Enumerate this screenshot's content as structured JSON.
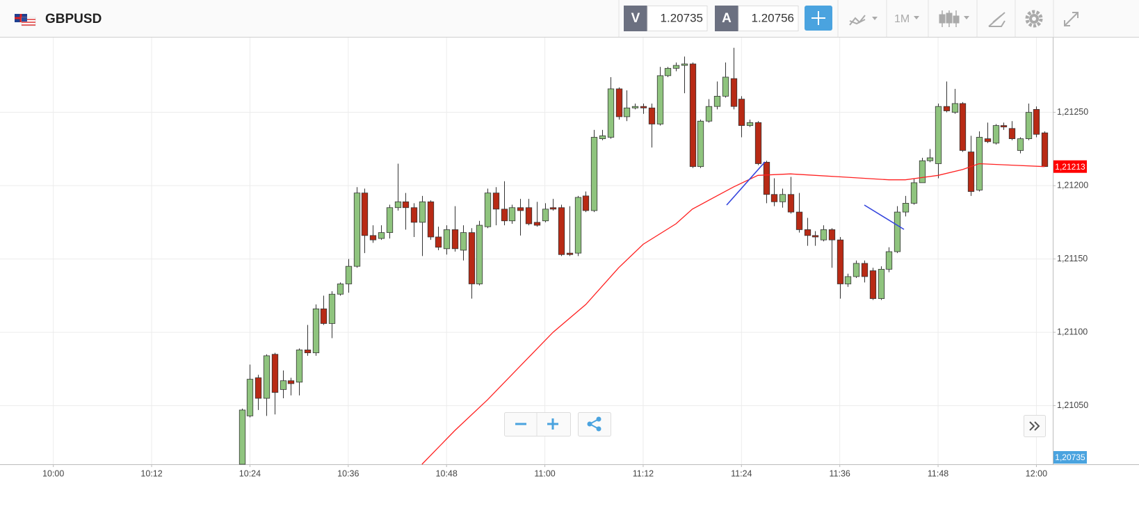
{
  "header": {
    "symbol": "GBPUSD",
    "sell_label": "V",
    "sell_price": 1.20735,
    "buy_label": "A",
    "buy_price": 1.20756,
    "timeframe": "1M"
  },
  "chart_data": {
    "type": "candlestick",
    "x": [
      "10:23",
      "10:24",
      "10:25",
      "10:26",
      "10:27",
      "10:28",
      "10:29",
      "10:30",
      "10:31",
      "10:32",
      "10:33",
      "10:34",
      "10:35",
      "10:36",
      "10:37",
      "10:38",
      "10:39",
      "10:40",
      "10:41",
      "10:42",
      "10:43",
      "10:44",
      "10:45",
      "10:46",
      "10:47",
      "10:48",
      "10:49",
      "10:50",
      "10:51",
      "10:52",
      "10:53",
      "10:54",
      "10:55",
      "10:56",
      "10:57",
      "10:58",
      "10:59",
      "11:00",
      "11:01",
      "11:02",
      "11:03",
      "11:04",
      "11:05",
      "11:06",
      "11:07",
      "11:08",
      "11:09",
      "11:10",
      "11:11",
      "11:12",
      "11:13",
      "11:14",
      "11:15",
      "11:16",
      "11:17",
      "11:18",
      "11:19",
      "11:20",
      "11:21",
      "11:22",
      "11:23",
      "11:24",
      "11:25",
      "11:26",
      "11:27",
      "11:28",
      "11:29",
      "11:30",
      "11:31",
      "11:32",
      "11:33",
      "11:34",
      "11:35",
      "11:36",
      "11:37",
      "11:38",
      "11:39",
      "11:40",
      "11:41",
      "11:42",
      "11:43",
      "11:44",
      "11:45",
      "11:46",
      "11:47",
      "11:48",
      "11:49",
      "11:50",
      "11:51",
      "11:52",
      "11:53",
      "11:54",
      "11:55",
      "11:56",
      "11:57",
      "11:58",
      "11:59",
      "12:00",
      "12:01"
    ],
    "open": [
      1.2101,
      1.21043,
      1.21069,
      1.21055,
      1.21085,
      1.21061,
      1.21067,
      1.21066,
      1.21088,
      1.21086,
      1.21116,
      1.21106,
      1.21126,
      1.21133,
      1.21145,
      1.21195,
      1.21166,
      1.21164,
      1.21168,
      1.21185,
      1.21189,
      1.21185,
      1.21175,
      1.21189,
      1.21165,
      1.21157,
      1.2117,
      1.21156,
      1.21168,
      1.21133,
      1.21172,
      1.21195,
      1.21184,
      1.21176,
      1.21185,
      1.21185,
      1.21175,
      1.21176,
      1.21185,
      1.21185,
      1.21154,
      1.21154,
      1.21193,
      1.21183,
      1.21232,
      1.21233,
      1.21266,
      1.21247,
      1.21253,
      1.21254,
      1.21253,
      1.21242,
      1.21275,
      1.2128,
      1.21282,
      1.21283,
      1.21213,
      1.21244,
      1.21254,
      1.21261,
      1.21273,
      1.21259,
      1.21241,
      1.21243,
      1.21216,
      1.21194,
      1.21189,
      1.21194,
      1.21182,
      1.2117,
      1.21166,
      1.21163,
      1.2117,
      1.21163,
      1.21133,
      1.21138,
      1.21147,
      1.21142,
      1.21123,
      1.21143,
      1.21155,
      1.21182,
      1.21188,
      1.21202,
      1.21217,
      1.21215,
      1.21254,
      1.2125,
      1.21256,
      1.21223,
      1.21197,
      1.21232,
      1.21229,
      1.21241,
      1.21239,
      1.21224,
      1.21232,
      1.21252,
      1.21236
    ],
    "high": [
      1.21048,
      1.21078,
      1.21071,
      1.21085,
      1.21086,
      1.21074,
      1.21069,
      1.21089,
      1.21105,
      1.21119,
      1.21125,
      1.21128,
      1.21134,
      1.2115,
      1.21199,
      1.21198,
      1.21173,
      1.21173,
      1.21187,
      1.21215,
      1.21195,
      1.21188,
      1.21193,
      1.2119,
      1.21172,
      1.21173,
      1.21186,
      1.21173,
      1.21171,
      1.21176,
      1.21198,
      1.21199,
      1.21203,
      1.21187,
      1.21191,
      1.21191,
      1.21189,
      1.21188,
      1.21191,
      1.21187,
      1.21186,
      1.21193,
      1.21196,
      1.21238,
      1.21238,
      1.21274,
      1.21267,
      1.21265,
      1.21256,
      1.21256,
      1.21256,
      1.21281,
      1.21281,
      1.21284,
      1.21288,
      1.21284,
      1.21245,
      1.21259,
      1.21271,
      1.21284,
      1.21294,
      1.21261,
      1.21245,
      1.21244,
      1.21217,
      1.21205,
      1.21198,
      1.21206,
      1.21195,
      1.21178,
      1.21169,
      1.21173,
      1.21171,
      1.21165,
      1.2114,
      1.21149,
      1.21149,
      1.21144,
      1.21145,
      1.21158,
      1.21186,
      1.21193,
      1.21205,
      1.21219,
      1.21225,
      1.21256,
      1.21271,
      1.21266,
      1.21257,
      1.21234,
      1.21237,
      1.21243,
      1.21242,
      1.21243,
      1.21244,
      1.21233,
      1.21256,
      1.21254,
      1.21237
    ],
    "low": [
      1.2101,
      1.21042,
      1.21047,
      1.21043,
      1.21044,
      1.21055,
      1.21057,
      1.21057,
      1.21084,
      1.21084,
      1.21105,
      1.21096,
      1.21125,
      1.21127,
      1.21144,
      1.21154,
      1.21161,
      1.21163,
      1.21164,
      1.21183,
      1.2117,
      1.21165,
      1.21152,
      1.21163,
      1.21156,
      1.21153,
      1.21155,
      1.21149,
      1.21123,
      1.21132,
      1.21171,
      1.21173,
      1.21173,
      1.21174,
      1.21166,
      1.21173,
      1.21172,
      1.21175,
      1.21183,
      1.21152,
      1.21152,
      1.21152,
      1.21182,
      1.21182,
      1.21231,
      1.21232,
      1.21245,
      1.21244,
      1.21252,
      1.21249,
      1.21226,
      1.21241,
      1.21274,
      1.21278,
      1.21263,
      1.21212,
      1.21212,
      1.21243,
      1.21252,
      1.2126,
      1.21252,
      1.21233,
      1.2124,
      1.21214,
      1.21188,
      1.21186,
      1.21185,
      1.21181,
      1.21168,
      1.21159,
      1.21159,
      1.21162,
      1.21144,
      1.21123,
      1.21131,
      1.21137,
      1.21134,
      1.21122,
      1.21122,
      1.21141,
      1.21154,
      1.21179,
      1.21187,
      1.21202,
      1.21216,
      1.21205,
      1.2125,
      1.21249,
      1.21223,
      1.21193,
      1.21196,
      1.21229,
      1.21228,
      1.21238,
      1.21231,
      1.21222,
      1.21231,
      1.21233,
      1.21213
    ],
    "close": [
      1.21047,
      1.21068,
      1.21055,
      1.21084,
      1.21059,
      1.21067,
      1.21065,
      1.21088,
      1.21086,
      1.21116,
      1.21106,
      1.21126,
      1.21133,
      1.21145,
      1.21195,
      1.21166,
      1.21163,
      1.21168,
      1.21185,
      1.21189,
      1.21185,
      1.21175,
      1.21189,
      1.21165,
      1.21158,
      1.2117,
      1.21157,
      1.21168,
      1.21133,
      1.21173,
      1.21195,
      1.21184,
      1.21176,
      1.21185,
      1.21183,
      1.21174,
      1.21173,
      1.21184,
      1.21184,
      1.21153,
      1.21153,
      1.21192,
      1.21183,
      1.21233,
      1.21234,
      1.21266,
      1.21247,
      1.21253,
      1.21254,
      1.21253,
      1.21242,
      1.21275,
      1.2128,
      1.21282,
      1.21283,
      1.21213,
      1.21244,
      1.21254,
      1.21261,
      1.21274,
      1.21254,
      1.21241,
      1.21243,
      1.21215,
      1.21194,
      1.21189,
      1.21194,
      1.21182,
      1.2117,
      1.21166,
      1.21165,
      1.2117,
      1.21163,
      1.21133,
      1.21138,
      1.21147,
      1.21138,
      1.21123,
      1.21143,
      1.21155,
      1.21182,
      1.21188,
      1.21202,
      1.21217,
      1.21219,
      1.21254,
      1.21251,
      1.21256,
      1.21224,
      1.21196,
      1.21233,
      1.2123,
      1.21241,
      1.2124,
      1.21232,
      1.21232,
      1.2125,
      1.21235,
      1.21213
    ],
    "up_color": "#8fc47e",
    "down_color": "#b82a15",
    "moving_average": {
      "color": "#ff2020",
      "x": [
        "10:45",
        "10:49",
        "10:53",
        "10:57",
        "11:01",
        "11:05",
        "11:09",
        "11:12",
        "11:16",
        "11:18",
        "11:23",
        "11:26",
        "11:30",
        "11:36",
        "11:42",
        "11:44",
        "11:48",
        "11:51",
        "11:53",
        "11:57",
        "12:01"
      ],
      "values": [
        1.2101,
        1.21033,
        1.21054,
        1.21077,
        1.211,
        1.21119,
        1.21144,
        1.2116,
        1.21174,
        1.21184,
        1.21199,
        1.21207,
        1.21208,
        1.21206,
        1.21204,
        1.21204,
        1.21207,
        1.21211,
        1.21215,
        1.21214,
        1.21213
      ]
    },
    "price_tags": [
      {
        "value": 1.21213,
        "label": "1,21213",
        "color": "#ff0000"
      },
      {
        "value": 1.20735,
        "label": "1,20735",
        "color": "#4aa3df"
      }
    ],
    "xlim": [
      "09:54",
      "12:02"
    ],
    "xticks": [
      "10:00",
      "10:12",
      "10:24",
      "10:36",
      "10:48",
      "11:00",
      "11:12",
      "11:24",
      "11:36",
      "11:48",
      "12:00"
    ],
    "ylim": [
      1.2101,
      1.21301
    ],
    "yticks": [
      {
        "value": 1.2105,
        "label": "1,21050"
      },
      {
        "value": 1.211,
        "label": "1,21100"
      },
      {
        "value": 1.2115,
        "label": "1,21150"
      },
      {
        "value": 1.212,
        "label": "1,21200"
      },
      {
        "value": 1.2125,
        "label": "1,21250"
      }
    ],
    "grid": true
  }
}
